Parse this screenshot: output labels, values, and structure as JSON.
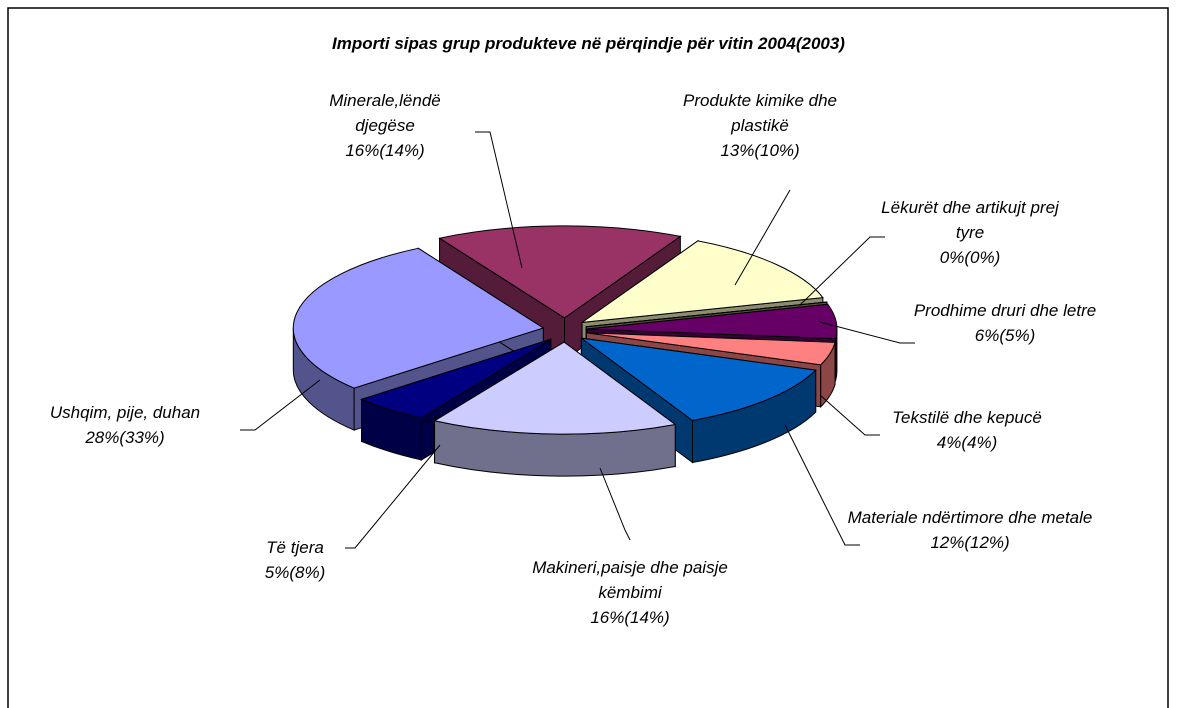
{
  "chart_data": {
    "type": "pie",
    "title": "Importi sipas grup produkteve në përqindje për vitin 2004(2003)",
    "categories": [
      "Minerale,lëndë djegëse",
      "Produkte kimike dhe plastikë",
      "Lëkurët dhe artikujt prej tyre",
      "Prodhime druri dhe letre",
      "Tekstilë dhe kepucë",
      "Materiale ndërtimore dhe metale",
      "Makineri,paisje dhe paisje këmbimi",
      "Të tjera",
      "Ushqim, pije, duhan"
    ],
    "values": [
      16,
      13,
      0,
      6,
      4,
      12,
      16,
      5,
      28
    ],
    "value_labels": [
      "16%(14%)",
      "13%(10%)",
      "0%(0%)",
      "6%(5%)",
      "4%(4%)",
      "12%(12%)",
      "16%(14%)",
      "5%(8%)",
      "28%(33%)"
    ],
    "colors": [
      "#993366",
      "#FFFFCC",
      "#999966",
      "#660066",
      "#FF8080",
      "#0066CC",
      "#CCCCFF",
      "#000080",
      "#9999FF"
    ]
  }
}
